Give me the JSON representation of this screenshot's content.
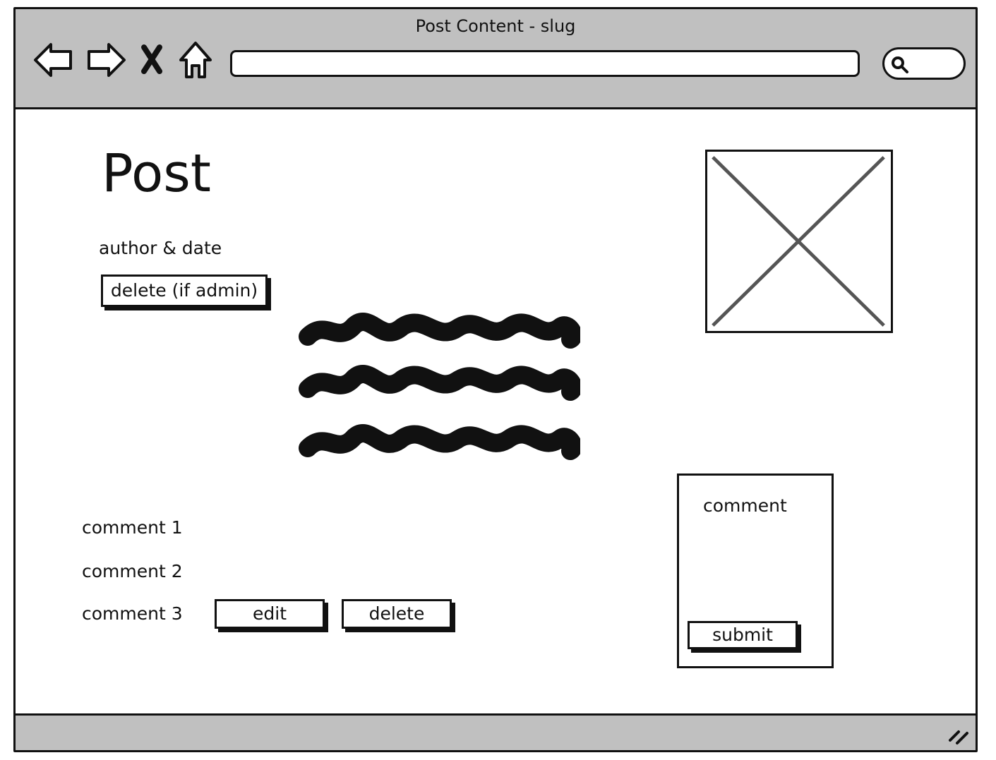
{
  "window": {
    "title": "Post Content - slug"
  },
  "toolbar": {
    "back_icon": "back-arrow-icon",
    "forward_icon": "forward-arrow-icon",
    "stop_icon": "stop-x-icon",
    "home_icon": "home-icon",
    "address_value": "",
    "search_icon": "search-icon"
  },
  "post": {
    "title": "Post",
    "meta": "author & date",
    "delete_label": "delete (if admin)",
    "body_placeholder": "scribble-text",
    "image_placeholder": "image-placeholder"
  },
  "comments": {
    "items": [
      "comment 1",
      "comment 2",
      "comment 3"
    ],
    "edit_label": "edit",
    "delete_label": "delete"
  },
  "comment_form": {
    "placeholder": "comment",
    "submit_label": "submit"
  },
  "colors": {
    "chrome": "#c0c0c0",
    "ink": "#111111",
    "placeholder_lines": "#555555"
  }
}
